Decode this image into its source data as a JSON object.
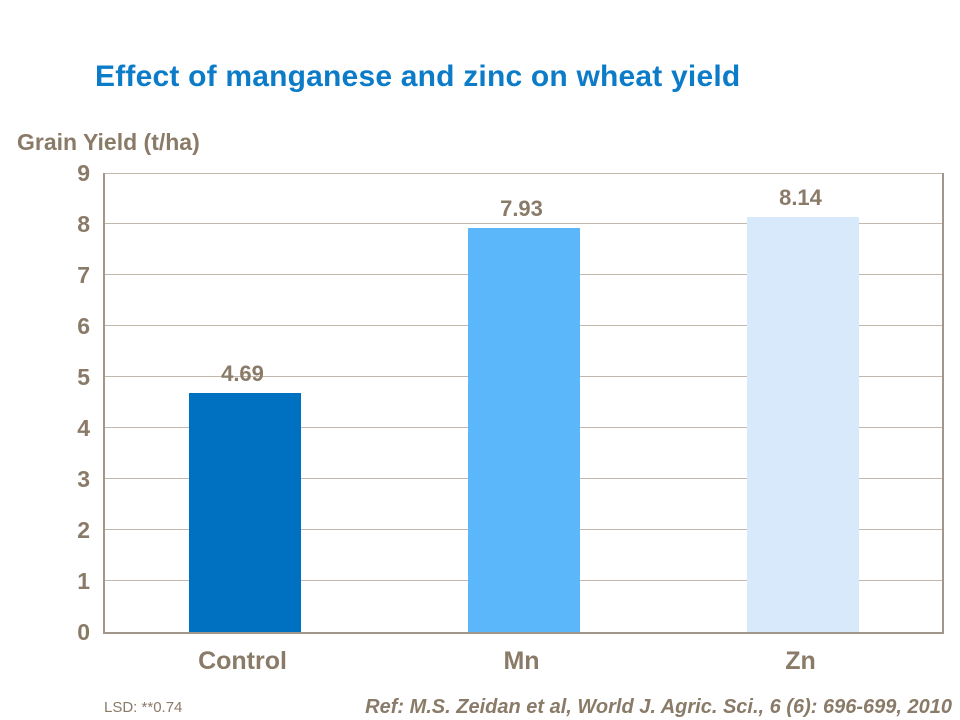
{
  "slide": {
    "footer_left": "LSD: **0.74",
    "footer_right": "Ref: M.S. Zeidan et al, World J. Agric. Sci., 6 (6): 696-699, 2010"
  },
  "colors": {
    "background": "#FFFFFF",
    "title_text": "#0C7CC8",
    "body_text": "#8A7A68",
    "axis_line": "#A0968A",
    "gridline": "#C1B7AA",
    "bar_control": "#0070C0",
    "bar_mn": "#5CB6FA",
    "bar_zn": "#D7E9FB"
  },
  "chart_data": {
    "type": "bar",
    "title": "Effect of manganese and zinc on wheat yield",
    "ylabel": "Grain Yield (t/ha)",
    "xlabel": "",
    "categories": [
      "Control",
      "Mn",
      "Zn"
    ],
    "values": [
      4.69,
      7.93,
      8.14
    ],
    "value_labels": [
      "4.69",
      "7.93",
      "8.14"
    ],
    "ylim": [
      0,
      9
    ],
    "ytick_step": 1,
    "grid": true,
    "legend": "none",
    "bar_colors": [
      "#0070C0",
      "#5CB6FA",
      "#D7E9FB"
    ]
  }
}
